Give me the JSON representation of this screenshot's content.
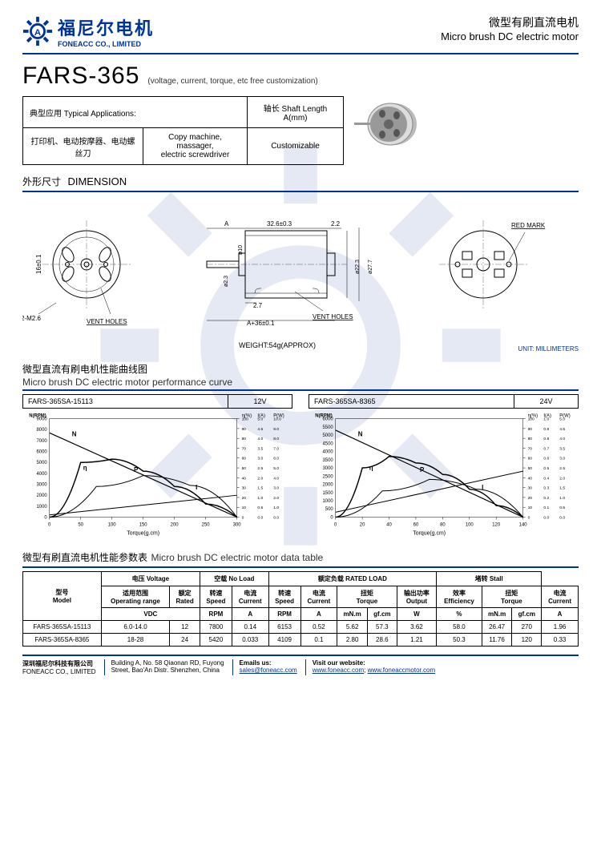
{
  "header": {
    "logo_cn": "福尼尔电机",
    "logo_en": "FONEACC CO., LIMITED",
    "title_cn": "微型有刷直流电机",
    "title_en": "Micro brush DC electric motor"
  },
  "title": {
    "main": "FARS-365",
    "sub": "(voltage, current, torque, etc free customization)"
  },
  "apps": {
    "header_cn": "典型应用 Typical Applications:",
    "shaft_header": "轴长 Shaft Length A(mm)",
    "cn_apps": "打印机、电动按摩器、电动螺丝刀",
    "en_apps": "Copy machine,\nmassager,\nelectric screwdriver",
    "shaft_val": "Customizable"
  },
  "dimension": {
    "title_cn": "外形尺寸",
    "title_en": "DIMENSION",
    "labels": {
      "vent": "VENT HOLES",
      "red_mark": "RED MARK",
      "weight": "WEIGHT:54g(APPROX)",
      "unit": "UNIT: MILLIMETERS",
      "holes": "2-M2.6",
      "d16": "16±0.1",
      "A": "A",
      "len": "32.6±0.3",
      "t22": "2.2",
      "d10": "ø10",
      "d23": "ø2.3",
      "d223": "ø22.3",
      "d277": "ø27.7",
      "s27": "2.7",
      "total": "A+36±0.1"
    }
  },
  "perf": {
    "title_cn": "微型直流有刷电机性能曲线图",
    "title_en": "Micro brush DC electric motor performance curve",
    "charts": [
      {
        "model": "FARS-365SA-15113",
        "voltage": "12V",
        "y_label": "N(RPM)",
        "x_label": "Torque(g.cm)",
        "x_max": 300,
        "x_step": 50,
        "n_max": 9000,
        "n_step": 1000,
        "eff_max": 100,
        "eff_step": 10,
        "i_max": 5,
        "i_step": 0.5,
        "p_max": 10,
        "p_step": 1,
        "series": {
          "N": [
            [
              0,
              7700
            ],
            [
              300,
              0
            ]
          ],
          "I": [
            [
              0,
              200
            ],
            [
              300,
              2000
            ]
          ],
          "eta": [
            [
              0,
              0
            ],
            [
              50,
              5000
            ],
            [
              100,
              5300
            ],
            [
              150,
              4200
            ],
            [
              200,
              2800
            ],
            [
              250,
              1200
            ],
            [
              300,
              0
            ]
          ],
          "P": [
            [
              0,
              0
            ],
            [
              75,
              2800
            ],
            [
              150,
              3800
            ],
            [
              225,
              2900
            ],
            [
              300,
              0
            ]
          ]
        },
        "curve_color": "#000",
        "bg": "#fff"
      },
      {
        "model": "FARS-365SA-8365",
        "voltage": "24V",
        "y_label": "N(RPM)",
        "x_label": "Torque(g.cm)",
        "x_max": 140,
        "x_step": 20,
        "n_max": 6000,
        "n_step": 500,
        "eff_max": 100,
        "eff_step": 10,
        "i_max": 1,
        "i_step": 0.1,
        "p_max": 5,
        "p_step": 0.5,
        "series": {
          "N": [
            [
              0,
              5300
            ],
            [
              140,
              0
            ]
          ],
          "I": [
            [
              0,
              300
            ],
            [
              140,
              2800
            ]
          ],
          "eta": [
            [
              0,
              0
            ],
            [
              20,
              3000
            ],
            [
              40,
              3700
            ],
            [
              60,
              3300
            ],
            [
              80,
              2600
            ],
            [
              100,
              1700
            ],
            [
              120,
              700
            ],
            [
              140,
              0
            ]
          ],
          "P": [
            [
              0,
              0
            ],
            [
              35,
              1600
            ],
            [
              70,
              2300
            ],
            [
              105,
              1700
            ],
            [
              140,
              0
            ]
          ]
        },
        "curve_color": "#000",
        "bg": "#fff"
      }
    ]
  },
  "data_table": {
    "title_cn": "微型有刷直流电机性能参数表",
    "title_en": "Micro brush DC electric motor data table",
    "headers": {
      "model": "型号\nModel",
      "voltage": "电压 Voltage",
      "noload": "空载 No Load",
      "rated": "额定负载 RATED LOAD",
      "stall": "堵转 Stall",
      "op_range": "适用范围\nOperating range",
      "rated_v": "额定\nRated",
      "speed": "转速\nSpeed",
      "current": "电流\nCurrent",
      "torque": "扭矩\nTorque",
      "output": "输出功率\nOutput",
      "eff": "效率\nEfficiency",
      "vdc": "VDC",
      "rpm": "RPM",
      "a": "A",
      "mnm": "mN.m",
      "gfcm": "gf.cm",
      "w": "W",
      "pct": "%"
    },
    "rows": [
      {
        "model": "FARS-365SA-15113",
        "range": "6.0-14.0",
        "rated": "12",
        "nl_spd": "7800",
        "nl_cur": "0.14",
        "r_spd": "6153",
        "r_cur": "0.52",
        "t_mnm": "5.62",
        "t_gf": "57.3",
        "out": "3.62",
        "eff": "58.0",
        "s_mnm": "26.47",
        "s_gf": "270",
        "s_cur": "1.96"
      },
      {
        "model": "FARS-365SA-8365",
        "range": "18-28",
        "rated": "24",
        "nl_spd": "5420",
        "nl_cur": "0.033",
        "r_spd": "4109",
        "r_cur": "0.1",
        "t_mnm": "2.80",
        "t_gf": "28.6",
        "out": "1.21",
        "eff": "50.3",
        "s_mnm": "11.76",
        "s_gf": "120",
        "s_cur": "0.33"
      }
    ]
  },
  "footer": {
    "company_cn": "深圳福尼尔科技有限公司",
    "company_en": "FONEACC CO., LIMITED",
    "addr": "Building A, No. 58 Qiaonan RD, Fuyong\nStreet, Bao'An Distr. Shenzhen, China",
    "email_label": "Emails us:",
    "email": "sales@foneacc.com",
    "web_label": "Visit our website:",
    "web1": "www.foneacc.com",
    "web2": "www.foneaccmotor.com"
  },
  "colors": {
    "brand": "#003399",
    "text": "#000000",
    "line": "#000"
  }
}
